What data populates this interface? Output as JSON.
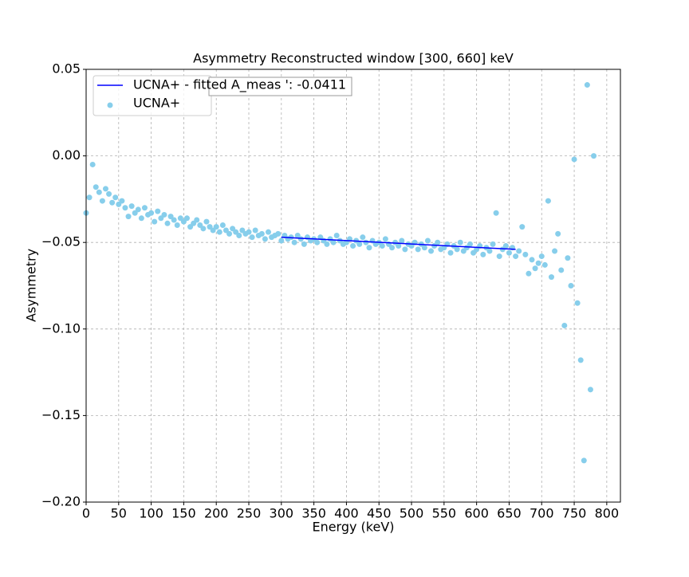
{
  "chart_data": {
    "type": "scatter",
    "title": "Asymmetry Reconstructed window [300, 660] keV",
    "xlabel": "Energy (keV)",
    "ylabel": "Asymmetry",
    "xlim": [
      0,
      821
    ],
    "ylim": [
      -0.2,
      0.05
    ],
    "xticks": [
      0,
      50,
      100,
      150,
      200,
      250,
      300,
      350,
      400,
      450,
      500,
      550,
      600,
      650,
      700,
      750,
      800
    ],
    "yticks": [
      0.05,
      {
        "value": 0,
        "label": "0.00"
      },
      {
        "value": -0.05,
        "label": "−0.05"
      },
      {
        "value": -0.1,
        "label": "−0.10"
      },
      {
        "value": -0.15,
        "label": "−0.15"
      },
      {
        "value": -0.2,
        "label": "−0.20"
      }
    ],
    "grid": true,
    "legend": "upper left",
    "series": [
      {
        "name": "UCNA+ - fitted A_meas ': -0.0411",
        "type": "line",
        "color": "#0000ff",
        "x": [
          300,
          660
        ],
        "values": [
          -0.047,
          -0.054
        ]
      },
      {
        "name": "UCNA+",
        "type": "scatter",
        "color": "#87ceeb",
        "x": [
          0,
          5,
          10,
          15,
          20,
          25,
          30,
          35,
          40,
          45,
          50,
          55,
          60,
          65,
          70,
          75,
          80,
          85,
          90,
          95,
          100,
          105,
          110,
          115,
          120,
          125,
          130,
          135,
          140,
          145,
          150,
          155,
          160,
          165,
          170,
          175,
          180,
          185,
          190,
          195,
          200,
          205,
          210,
          215,
          220,
          225,
          230,
          235,
          240,
          245,
          250,
          255,
          260,
          265,
          270,
          275,
          280,
          285,
          290,
          295,
          300,
          305,
          310,
          315,
          320,
          325,
          330,
          335,
          340,
          345,
          350,
          355,
          360,
          365,
          370,
          375,
          380,
          385,
          390,
          395,
          400,
          405,
          410,
          415,
          420,
          425,
          430,
          435,
          440,
          445,
          450,
          455,
          460,
          465,
          470,
          475,
          480,
          485,
          490,
          495,
          500,
          505,
          510,
          515,
          520,
          525,
          530,
          535,
          540,
          545,
          550,
          555,
          560,
          565,
          570,
          575,
          580,
          585,
          590,
          595,
          600,
          605,
          610,
          615,
          620,
          625,
          630,
          635,
          640,
          645,
          650,
          655,
          660,
          665,
          670,
          675,
          680,
          685,
          690,
          695,
          700,
          705,
          710,
          715,
          720,
          725,
          730,
          735,
          740,
          745,
          750,
          755,
          760,
          765,
          770,
          775,
          780
        ],
        "values": [
          -0.033,
          -0.024,
          -0.005,
          -0.018,
          -0.021,
          -0.026,
          -0.019,
          -0.022,
          -0.027,
          -0.024,
          -0.028,
          -0.026,
          -0.03,
          -0.035,
          -0.029,
          -0.033,
          -0.031,
          -0.036,
          -0.03,
          -0.034,
          -0.033,
          -0.038,
          -0.032,
          -0.036,
          -0.034,
          -0.039,
          -0.035,
          -0.037,
          -0.04,
          -0.036,
          -0.038,
          -0.036,
          -0.041,
          -0.039,
          -0.037,
          -0.04,
          -0.042,
          -0.038,
          -0.041,
          -0.043,
          -0.041,
          -0.044,
          -0.04,
          -0.043,
          -0.045,
          -0.042,
          -0.044,
          -0.046,
          -0.043,
          -0.045,
          -0.044,
          -0.047,
          -0.043,
          -0.046,
          -0.045,
          -0.048,
          -0.044,
          -0.047,
          -0.046,
          -0.045,
          -0.049,
          -0.046,
          -0.048,
          -0.047,
          -0.05,
          -0.046,
          -0.048,
          -0.051,
          -0.047,
          -0.049,
          -0.048,
          -0.05,
          -0.047,
          -0.049,
          -0.051,
          -0.048,
          -0.05,
          -0.046,
          -0.049,
          -0.051,
          -0.05,
          -0.048,
          -0.052,
          -0.049,
          -0.051,
          -0.047,
          -0.05,
          -0.053,
          -0.049,
          -0.051,
          -0.05,
          -0.052,
          -0.048,
          -0.051,
          -0.053,
          -0.05,
          -0.052,
          -0.049,
          -0.054,
          -0.051,
          -0.052,
          -0.05,
          -0.054,
          -0.051,
          -0.053,
          -0.049,
          -0.055,
          -0.052,
          -0.05,
          -0.054,
          -0.053,
          -0.051,
          -0.056,
          -0.052,
          -0.054,
          -0.05,
          -0.055,
          -0.053,
          -0.051,
          -0.056,
          -0.054,
          -0.052,
          -0.057,
          -0.053,
          -0.055,
          -0.051,
          -0.033,
          -0.058,
          -0.054,
          -0.052,
          -0.056,
          -0.053,
          -0.058,
          -0.055,
          -0.041,
          -0.057,
          -0.068,
          -0.06,
          -0.065,
          -0.062,
          -0.058,
          -0.063,
          -0.026,
          -0.07,
          -0.055,
          -0.045,
          -0.066,
          -0.098,
          -0.059,
          -0.075,
          -0.002,
          -0.085,
          -0.118,
          -0.176,
          0.041,
          -0.135,
          0.0
        ]
      }
    ]
  }
}
